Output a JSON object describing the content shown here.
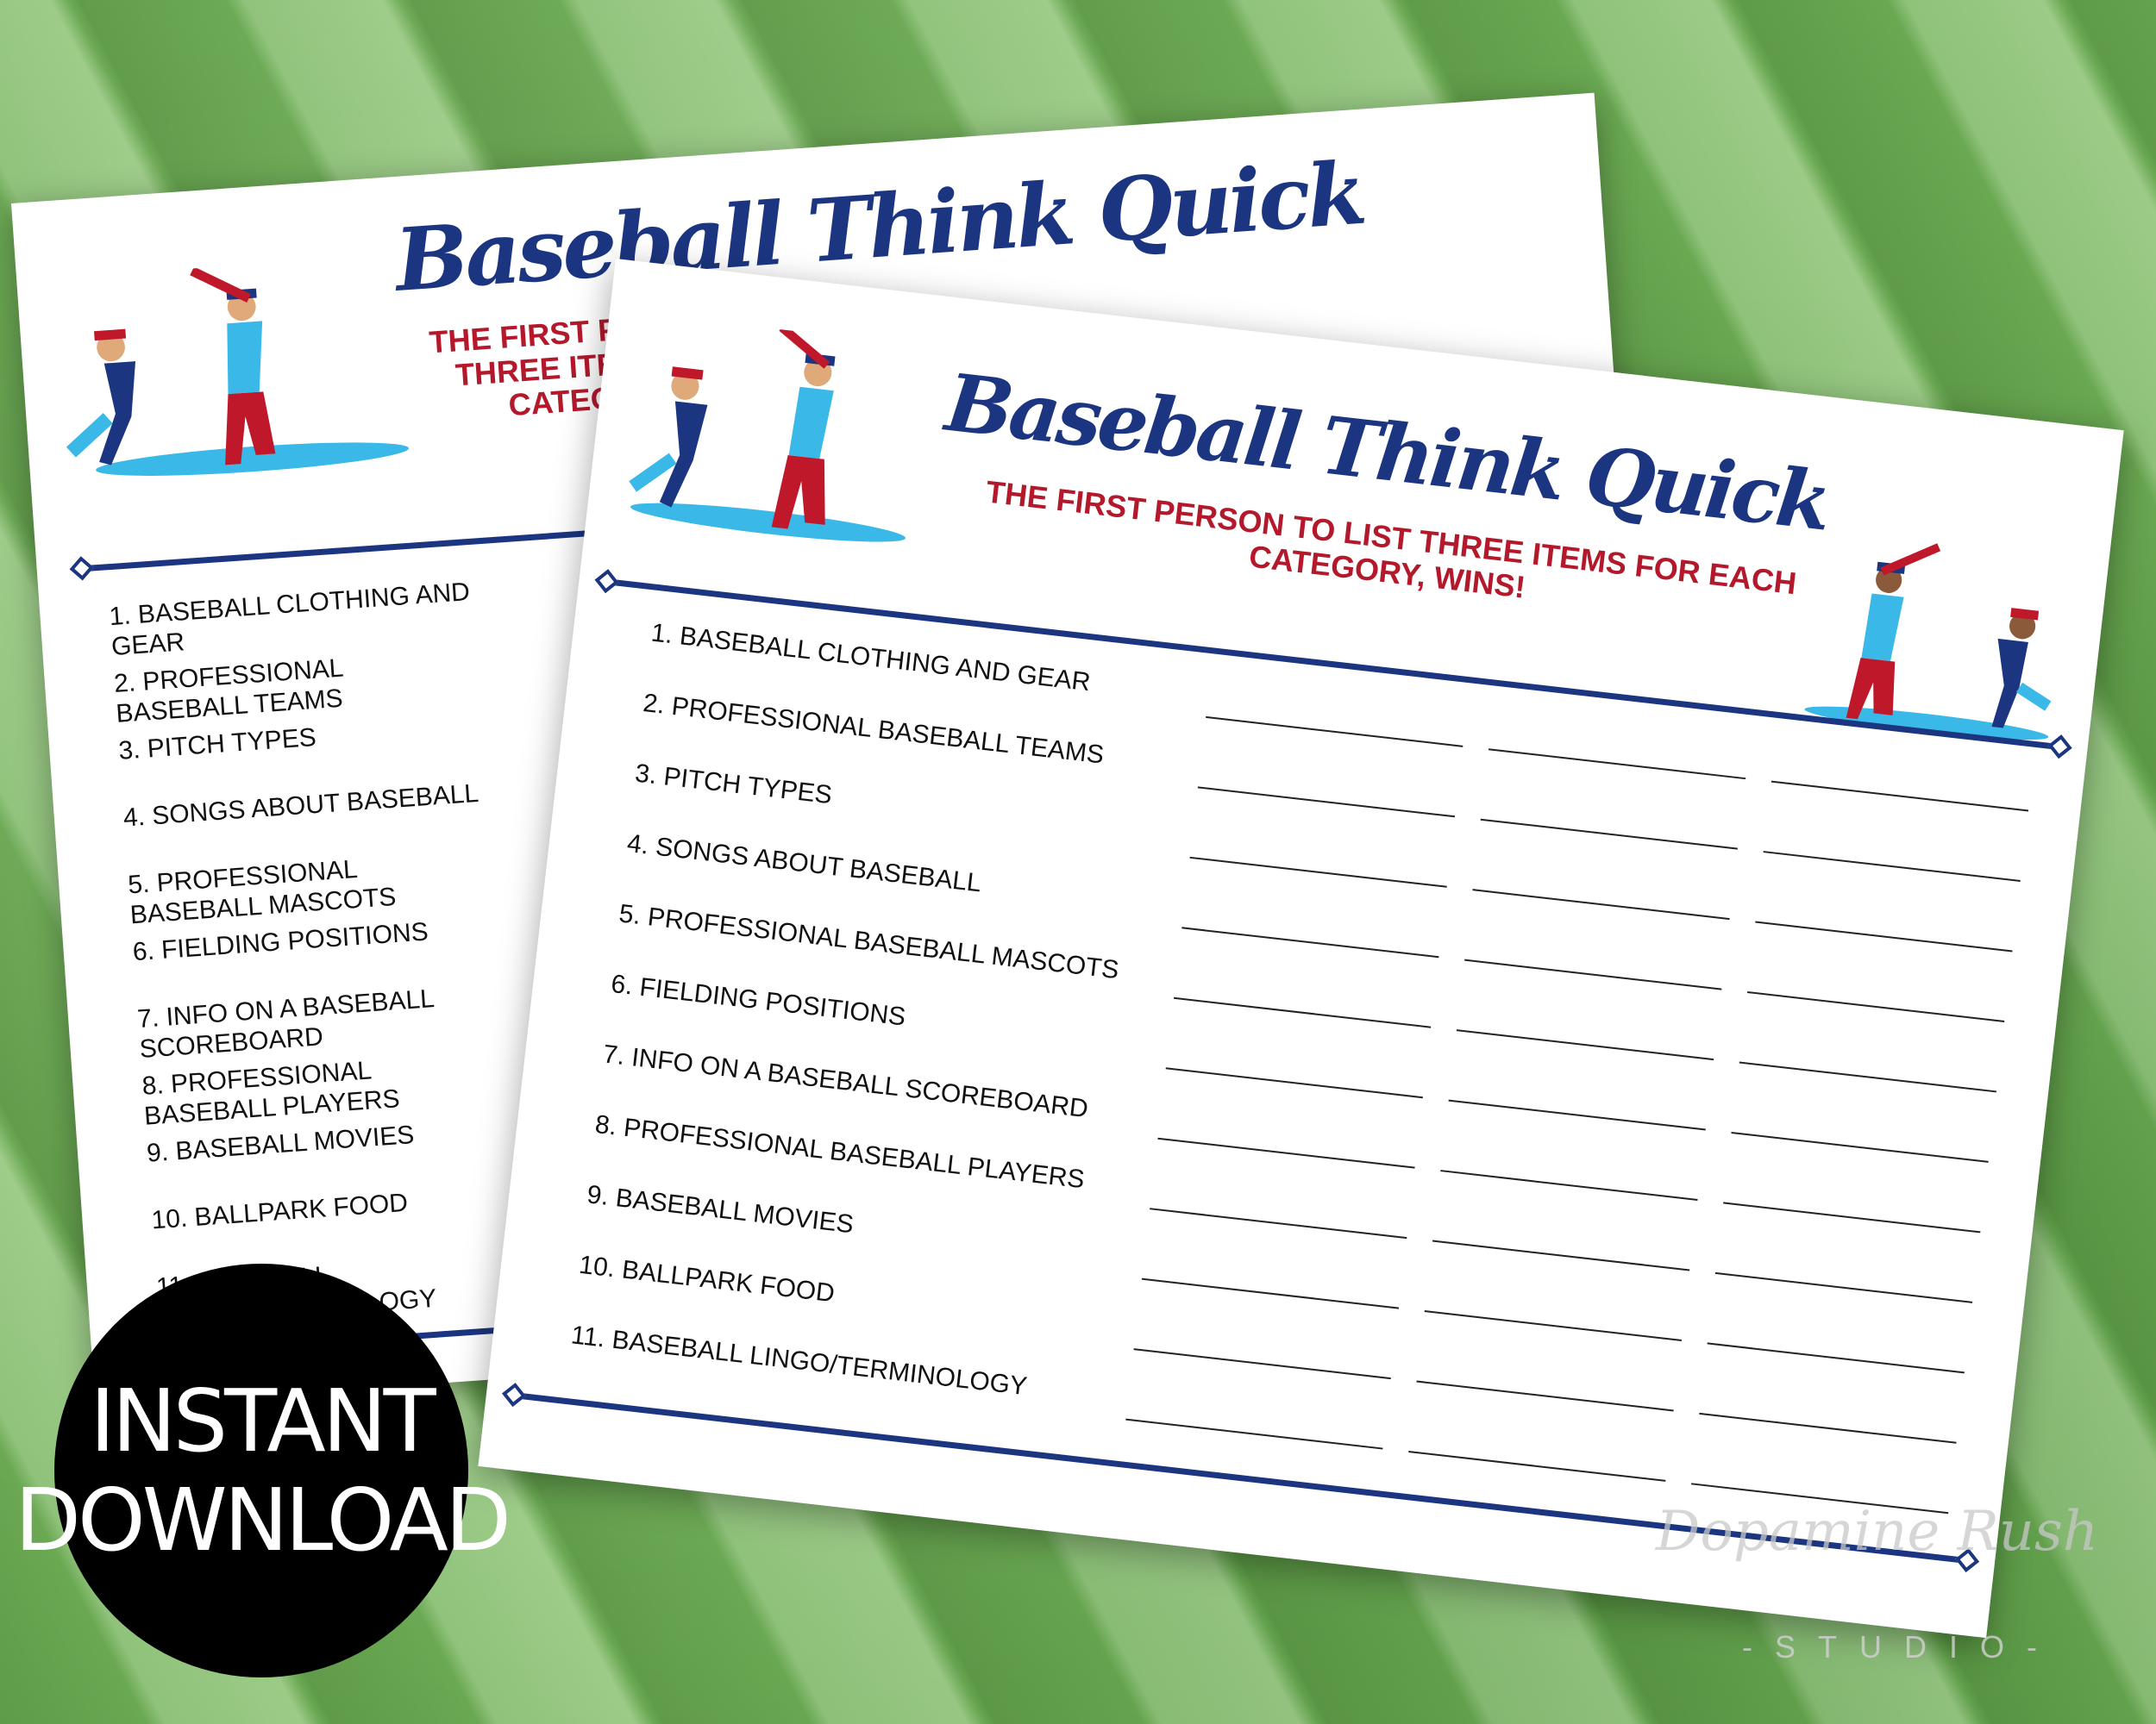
{
  "sheet": {
    "title": "Baseball Think Quick",
    "subtitle_line1": "THE FIRST PERSON TO LIST THREE ITEMS FOR EACH",
    "subtitle_line2": "CATEGORY, WINS!",
    "items": [
      "1. BASEBALL CLOTHING AND GEAR",
      "2. PROFESSIONAL BASEBALL TEAMS",
      "3. PITCH TYPES",
      "4. SONGS ABOUT BASEBALL",
      "5. PROFESSIONAL BASEBALL MASCOTS",
      "6. FIELDING POSITIONS",
      "7. INFO ON A BASEBALL SCOREBOARD",
      "8. PROFESSIONAL BASEBALL PLAYERS",
      "9. BASEBALL MOVIES",
      "10. BALLPARK FOOD",
      "11. BASEBALL LINGO/TERMINOLOGY"
    ],
    "answer_columns": 3
  },
  "badge": {
    "line1": "INSTANT",
    "line2": "DOWNLOAD"
  },
  "watermark": {
    "name": "Dopamine Rush",
    "studio": "-STUDIO-"
  },
  "colors": {
    "navy": "#1b3580",
    "red": "#b3182b",
    "light_blue": "#3ab8e8",
    "grass": "#6aa852"
  }
}
